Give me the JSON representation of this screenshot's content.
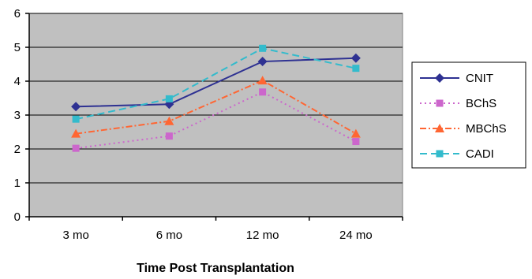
{
  "chart_data": {
    "type": "line",
    "categories": [
      "3 mo",
      "6 mo",
      "12 mo",
      "24 mo"
    ],
    "xlabel": "Time Post Transplantation",
    "ylabel": "",
    "ylim": [
      0,
      6
    ],
    "yticks": [
      0,
      1,
      2,
      3,
      4,
      5,
      6
    ],
    "grid": true,
    "legend_position": "right",
    "plot_background": "#c0c0c0",
    "series": [
      {
        "name": "CNIT",
        "values": [
          3.25,
          3.32,
          4.58,
          4.68
        ],
        "color": "#2e3192",
        "marker": "diamond",
        "dash": "solid"
      },
      {
        "name": "BChS",
        "values": [
          2.02,
          2.38,
          3.68,
          2.22
        ],
        "color": "#cc66cc",
        "marker": "square",
        "dash": "dotted"
      },
      {
        "name": "MBChS",
        "values": [
          2.45,
          2.82,
          4.02,
          2.45
        ],
        "color": "#ff6633",
        "marker": "triangle",
        "dash": "dashdot"
      },
      {
        "name": "CADI",
        "values": [
          2.88,
          3.48,
          4.97,
          4.38
        ],
        "color": "#33bbcc",
        "marker": "square",
        "dash": "dashed"
      }
    ]
  }
}
